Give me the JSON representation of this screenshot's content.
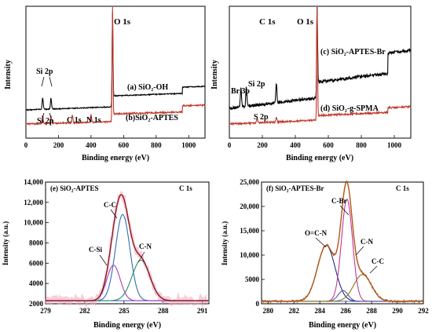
{
  "figure": {
    "panels": {
      "a": {
        "peaks": {
          "o1s": "O 1s",
          "si2p": "Si 2p",
          "si2p_b": "Si 2p",
          "c1s": "C 1s",
          "n1s": "N 1s"
        },
        "curves": {
          "a": "(a) SiO₂-OH",
          "b": "(b)SiO₂-APTES"
        },
        "xlabel": "Binding energy (eV)",
        "ylabel": "Intensity",
        "xticks": [
          "0",
          "200",
          "400",
          "600",
          "800",
          "1000"
        ]
      },
      "b": {
        "peaks": {
          "c1s": "C 1s",
          "o1s": "O 1s",
          "br3p": "Br 3p",
          "si2p": "Si 2p",
          "s2p": "S 2p"
        },
        "curves": {
          "c": "(c) SiO₂-APTES-Br",
          "d": "(d) SiO₂-g-SPMA"
        },
        "xlabel": "Binding energy (eV)",
        "ylabel": "Intensity",
        "xticks": [
          "0",
          "200",
          "400",
          "600",
          "800",
          "1000"
        ]
      },
      "e": {
        "title": "(e) SiO₂-APTES",
        "corner": "C 1s",
        "components": {
          "cc": "C-C",
          "csi": "C-Si",
          "cn": "C-N"
        },
        "xlabel": "Binding energy (eV)",
        "ylabel": "Intensity (a.u.)",
        "xticks": [
          "279",
          "282",
          "285",
          "288",
          "291"
        ],
        "yticks": [
          "2000",
          "4000",
          "6000",
          "8000",
          "10,000",
          "12,000",
          "14,000"
        ]
      },
      "f": {
        "title": "(f) SiO₂-APTES-Br",
        "corner": "C 1s",
        "components": {
          "cbr": "C-Br",
          "ocn": "O=C-N",
          "cn": "C-N",
          "cc": "C-C"
        },
        "xlabel": "Binding energy (eV)",
        "ylabel": "Intensity (a.u.)",
        "xticks": [
          "280",
          "282",
          "284",
          "286",
          "288",
          "290",
          "292"
        ],
        "yticks": [
          "0",
          "5000",
          "10,000",
          "15,000",
          "20,000",
          "25,000"
        ]
      }
    }
  },
  "chart_data": [
    {
      "panel": "a",
      "type": "line",
      "xlim": [
        0,
        1100
      ],
      "x_unit": "eV",
      "series": [
        {
          "name": "(a) SiO₂-OH",
          "color": "#000000",
          "peaks_ev": [
            {
              "label": "Si 2p",
              "x": 103
            },
            {
              "label": "Si 2p",
              "x": 154
            },
            {
              "label": "O 1s",
              "x": 532
            }
          ]
        },
        {
          "name": "(b)SiO₂-APTES",
          "color": "#c0392b",
          "peaks_ev": [
            {
              "label": "Si 2p",
              "x": 103
            },
            {
              "label": "Si 2p",
              "x": 154
            },
            {
              "label": "C 1s",
              "x": 285
            },
            {
              "label": "N 1s",
              "x": 400
            },
            {
              "label": "O 1s",
              "x": 532
            }
          ]
        }
      ]
    },
    {
      "panel": "b",
      "type": "line",
      "xlim": [
        0,
        1100
      ],
      "x_unit": "eV",
      "series": [
        {
          "name": "(c) SiO₂-APTES-Br",
          "color": "#000000",
          "peaks_ev": [
            {
              "label": "Br 3p",
              "x": 70
            },
            {
              "label": "Si 2p",
              "x": 103
            },
            {
              "label": "C 1s",
              "x": 285
            },
            {
              "label": "O 1s",
              "x": 532
            }
          ]
        },
        {
          "name": "(d) SiO₂-g-SPMA",
          "color": "#c0392b",
          "peaks_ev": [
            {
              "label": "S 2p",
              "x": 168
            },
            {
              "label": "C 1s",
              "x": 285
            },
            {
              "label": "O 1s",
              "x": 532
            }
          ]
        }
      ]
    },
    {
      "panel": "e",
      "type": "line",
      "xlim": [
        279,
        291.5
      ],
      "ylim": [
        2000,
        14000
      ],
      "background": 2300,
      "components": [
        {
          "name": "C-C",
          "center": 284.9,
          "fwhm": 1.3,
          "height": 8500,
          "color": "#2e6fb8"
        },
        {
          "name": "C-Si",
          "center": 284.2,
          "fwhm": 1.2,
          "height": 3500,
          "color": "#b03ab8"
        },
        {
          "name": "C-N",
          "center": 286.3,
          "fwhm": 1.6,
          "height": 4000,
          "color": "#2a8a6a"
        }
      ],
      "envelope_color": "#8b1a1a",
      "raw_color": "#f2a2c0"
    },
    {
      "panel": "f",
      "type": "line",
      "xlim": [
        279.5,
        292
      ],
      "ylim": [
        0,
        25000
      ],
      "background": 500,
      "components": [
        {
          "name": "O=C-N",
          "center": 284.5,
          "fwhm": 1.6,
          "height": 11500,
          "color": "#1c2a8c"
        },
        {
          "name": "C-Br",
          "center": 286.1,
          "fwhm": 1.0,
          "height": 21000,
          "color": "#c0399a"
        },
        {
          "name": "C-N",
          "center": 285.8,
          "fwhm": 0.9,
          "height": 2200,
          "color": "#5a5aa0"
        },
        {
          "name": "C-C",
          "center": 287.3,
          "fwhm": 1.6,
          "height": 5500,
          "color": "#8a7a1a"
        }
      ],
      "envelope_color": "#b85a1a",
      "raw_color": "#7a2a1a"
    }
  ]
}
